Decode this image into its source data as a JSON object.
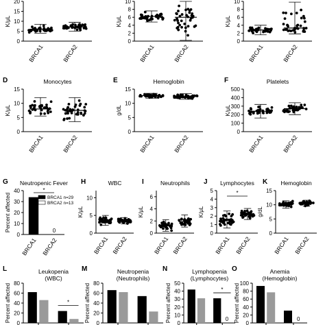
{
  "figure": {
    "panels": [
      {
        "id": "top1",
        "letter": "",
        "title": "",
        "ylabel": "K/μL",
        "yticks": [
          "0",
          "5",
          "10",
          "15",
          "20"
        ]
      },
      {
        "id": "top2",
        "letter": "",
        "title": "",
        "ylabel": "K/μL",
        "yticks": [
          "0",
          "2",
          "4",
          "6",
          "8",
          "10"
        ]
      },
      {
        "id": "top3",
        "letter": "",
        "title": "",
        "ylabel": "K/μL",
        "yticks": [
          "0",
          "2",
          "4",
          "6",
          "8",
          "10"
        ]
      },
      {
        "id": "D",
        "letter": "D",
        "title": "Monocytes",
        "ylabel": "K/μL",
        "yticks": [
          "0",
          "5",
          "10",
          "15"
        ]
      },
      {
        "id": "E",
        "letter": "E",
        "title": "Hemoglobin",
        "ylabel": "g/dL",
        "yticks": [
          "0",
          "5",
          "10",
          "15"
        ]
      },
      {
        "id": "F",
        "letter": "F",
        "title": "Platelets",
        "ylabel": "K/μL",
        "yticks": [
          "0",
          "100",
          "200",
          "300",
          "400",
          "500"
        ]
      },
      {
        "id": "G",
        "letter": "G",
        "title": "Neutropenic Fever",
        "ylabel": "Percent affected",
        "yticks": [
          "0",
          "10",
          "20",
          "30",
          "40"
        ]
      },
      {
        "id": "H",
        "letter": "H",
        "title": "WBC",
        "ylabel": "K/μL",
        "yticks": [
          "0",
          "5",
          "10"
        ]
      },
      {
        "id": "I",
        "letter": "I",
        "title": "Neutrophils",
        "ylabel": "K/μL",
        "yticks": [
          "0",
          "2",
          "4",
          "6"
        ]
      },
      {
        "id": "J",
        "letter": "J",
        "title": "Lymphocytes",
        "ylabel": "K/μL",
        "yticks": [
          "0",
          "1",
          "2",
          "3",
          "4",
          "5"
        ]
      },
      {
        "id": "K",
        "letter": "K",
        "title": "Hemoglobin",
        "ylabel": "g/dL",
        "yticks": [
          "0",
          "5",
          "10",
          "15"
        ]
      },
      {
        "id": "L",
        "letter": "L",
        "title": "Leukopenia",
        "title2": "(WBC)",
        "ylabel": "Percent affected",
        "yticks": [
          "0",
          "20",
          "40",
          "60",
          "80"
        ]
      },
      {
        "id": "M",
        "letter": "M",
        "title": "Neutropenia",
        "title2": "(Neutrophils)",
        "ylabel": "Percent affected",
        "yticks": [
          "0",
          "20",
          "40",
          "60",
          "80"
        ]
      },
      {
        "id": "N",
        "letter": "N",
        "title": "Lymphopenia",
        "title2": "(Lymphocytes)",
        "ylabel": "Percent affected",
        "yticks": [
          "0",
          "10",
          "20",
          "30",
          "40",
          "50"
        ]
      },
      {
        "id": "O",
        "letter": "O",
        "title": "Anemia",
        "title2": "(Hemoglobin)",
        "ylabel": "Percent affected",
        "yticks": [
          "0",
          "20",
          "40",
          "60",
          "80",
          "100"
        ]
      }
    ]
  },
  "colors": {
    "brca1": "#000000",
    "brca2": "#9a9a9a",
    "axis": "#000000"
  },
  "chart_data": [
    {
      "type": "scatter",
      "panel": "top1",
      "categories": [
        "BRCA1",
        "BRCA2"
      ],
      "ylabel": "K/μL",
      "ylim": [
        0,
        20
      ],
      "series": [
        {
          "name": "BRCA1",
          "mean": 6.0,
          "sd_low": 4.0,
          "sd_high": 8.5
        },
        {
          "name": "BRCA2",
          "mean": 7.2,
          "sd_low": 5.0,
          "sd_high": 9.5
        }
      ]
    },
    {
      "type": "scatter",
      "panel": "top2",
      "categories": [
        "BRCA1",
        "BRCA2"
      ],
      "ylabel": "K/μL",
      "ylim": [
        0,
        10
      ],
      "series": [
        {
          "name": "BRCA1",
          "mean": 6.2,
          "sd_low": 4.8,
          "sd_high": 7.6
        },
        {
          "name": "BRCA2",
          "mean": 6.0,
          "sd_low": 0.2,
          "sd_high": 10.0
        }
      ]
    },
    {
      "type": "scatter",
      "panel": "top3",
      "categories": [
        "BRCA1",
        "BRCA2"
      ],
      "ylabel": "K/μL",
      "ylim": [
        0,
        10
      ],
      "series": [
        {
          "name": "BRCA1",
          "mean": 2.8,
          "sd_low": 1.6,
          "sd_high": 4.0
        },
        {
          "name": "BRCA2",
          "mean": 3.3,
          "sd_low": 1.8,
          "sd_high": 9.8
        }
      ]
    },
    {
      "type": "scatter",
      "panel": "D",
      "title": "Monocytes",
      "categories": [
        "BRCA1",
        "BRCA2"
      ],
      "ylabel": "K/μL",
      "ylim": [
        0,
        15
      ],
      "series": [
        {
          "name": "BRCA1",
          "mean": 8.0,
          "sd_low": 5.5,
          "sd_high": 12.0
        },
        {
          "name": "BRCA2",
          "mean": 7.5,
          "sd_low": 3.5,
          "sd_high": 12.0
        }
      ]
    },
    {
      "type": "scatter",
      "panel": "E",
      "title": "Hemoglobin",
      "categories": [
        "BRCA1",
        "BRCA2"
      ],
      "ylabel": "g/dL",
      "ylim": [
        0,
        15
      ],
      "series": [
        {
          "name": "BRCA1",
          "mean": 12.7,
          "sd_low": 11.8,
          "sd_high": 13.5
        },
        {
          "name": "BRCA2",
          "mean": 12.4,
          "sd_low": 11.4,
          "sd_high": 13.4
        }
      ]
    },
    {
      "type": "scatter",
      "panel": "F",
      "title": "Platelets",
      "categories": [
        "BRCA1",
        "BRCA2"
      ],
      "ylabel": "K/μL",
      "ylim": [
        0,
        500
      ],
      "series": [
        {
          "name": "BRCA1",
          "mean": 240,
          "sd_low": 160,
          "sd_high": 320
        },
        {
          "name": "BRCA2",
          "mean": 270,
          "sd_low": 200,
          "sd_high": 340
        }
      ]
    },
    {
      "type": "bar",
      "panel": "G",
      "title": "Neutropenic Fever",
      "categories": [
        "BRCA1",
        "BRCA2"
      ],
      "ylabel": "Percent affected",
      "ylim": [
        0,
        40
      ],
      "series": [
        {
          "name": "BRCA1",
          "legend": "BRCA1  n=29",
          "values": [
            34,
            0
          ]
        },
        {
          "name": "BRCA2",
          "legend": "BRCA2  n=13",
          "values": [
            0,
            0
          ]
        }
      ],
      "annotations": [
        "*",
        "0"
      ]
    },
    {
      "type": "scatter",
      "panel": "H",
      "title": "WBC",
      "categories": [
        "BRCA1",
        "BRCA2"
      ],
      "ylabel": "K/μL",
      "ylim": [
        0,
        12
      ],
      "series": [
        {
          "name": "BRCA1",
          "mean": 3.5,
          "sd_low": 2.2,
          "sd_high": 5.0
        },
        {
          "name": "BRCA2",
          "mean": 3.4,
          "sd_low": 2.6,
          "sd_high": 4.4
        }
      ]
    },
    {
      "type": "scatter",
      "panel": "I",
      "title": "Neutrophils",
      "categories": [
        "BRCA1",
        "BRCA2"
      ],
      "ylabel": "K/μL",
      "ylim": [
        0,
        7
      ],
      "series": [
        {
          "name": "BRCA1",
          "mean": 1.2,
          "sd_low": 0.3,
          "sd_high": 2.2
        },
        {
          "name": "BRCA2",
          "mean": 1.9,
          "sd_low": 1.0,
          "sd_high": 3.0
        }
      ]
    },
    {
      "type": "scatter",
      "panel": "J",
      "title": "Lymphocytes",
      "categories": [
        "BRCA1",
        "BRCA2"
      ],
      "ylabel": "K/μL",
      "ylim": [
        0,
        5
      ],
      "series": [
        {
          "name": "BRCA1",
          "mean": 1.5,
          "sd_low": 0.6,
          "sd_high": 2.6
        },
        {
          "name": "BRCA2",
          "mean": 2.2,
          "sd_low": 1.6,
          "sd_high": 2.9
        }
      ],
      "annotations": [
        "*"
      ]
    },
    {
      "type": "scatter",
      "panel": "K",
      "title": "Hemoglobin",
      "categories": [
        "BRCA1",
        "BRCA2"
      ],
      "ylabel": "g/dL",
      "ylim": [
        0,
        15
      ],
      "series": [
        {
          "name": "BRCA1",
          "mean": 10.2,
          "sd_low": 8.8,
          "sd_high": 11.4
        },
        {
          "name": "BRCA2",
          "mean": 10.6,
          "sd_low": 9.5,
          "sd_high": 11.6
        }
      ]
    },
    {
      "type": "bar",
      "panel": "L",
      "title": "Leukopenia (WBC)",
      "ylabel": "Percent affected",
      "ylim": [
        0,
        80
      ],
      "groups": 2,
      "series": [
        {
          "name": "BRCA1",
          "values": [
            62,
            24
          ]
        },
        {
          "name": "BRCA2",
          "values": [
            46,
            8
          ]
        }
      ],
      "annotations": [
        "*"
      ]
    },
    {
      "type": "bar",
      "panel": "M",
      "title": "Neutropenia (Neutrophils)",
      "ylabel": "Percent affected",
      "ylim": [
        0,
        80
      ],
      "groups": 2,
      "series": [
        {
          "name": "BRCA1",
          "values": [
            66,
            54
          ]
        },
        {
          "name": "BRCA2",
          "values": [
            62,
            23
          ]
        }
      ]
    },
    {
      "type": "bar",
      "panel": "N",
      "title": "Lymphopenia (Lymphocytes)",
      "ylabel": "Percent affected",
      "ylim": [
        0,
        50
      ],
      "groups": 2,
      "series": [
        {
          "name": "BRCA1",
          "values": [
            42,
            31
          ]
        },
        {
          "name": "BRCA2",
          "values": [
            31,
            0
          ]
        }
      ],
      "annotations": [
        "*",
        "0"
      ]
    },
    {
      "type": "bar",
      "panel": "O",
      "title": "Anemia (Hemoglobin)",
      "ylabel": "Percent affected",
      "ylim": [
        0,
        100
      ],
      "groups": 2,
      "series": [
        {
          "name": "BRCA1",
          "values": [
            93,
            31
          ]
        },
        {
          "name": "BRCA2",
          "values": [
            77,
            0
          ]
        }
      ],
      "annotations": [
        "0"
      ]
    }
  ]
}
